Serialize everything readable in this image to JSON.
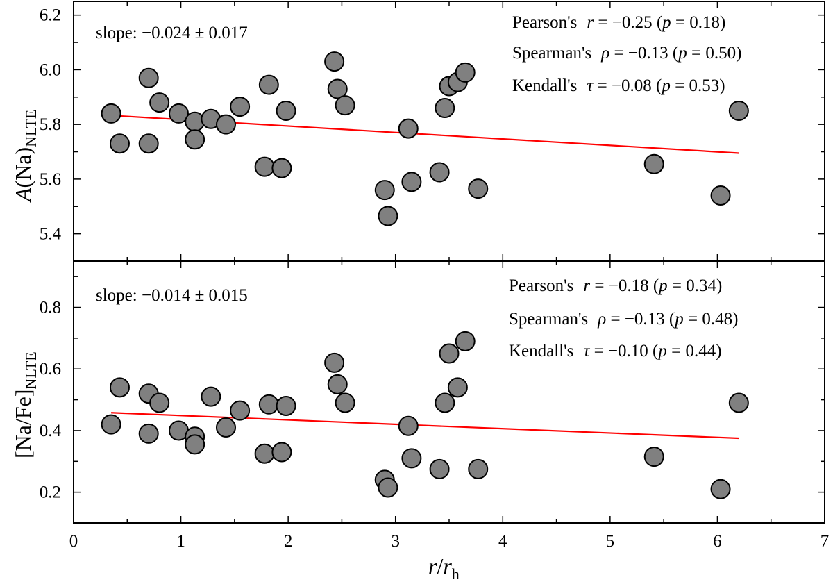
{
  "chart_data": [
    {
      "type": "scatter",
      "panel": "top",
      "ylabel_main": "A",
      "ylabel_paren": "(Na)",
      "ylabel_sub": "NLTE",
      "xlim": [
        0,
        7
      ],
      "ylim": [
        5.3,
        6.25
      ],
      "yticks": [
        5.4,
        5.6,
        5.8,
        6.0,
        6.2
      ],
      "ytick_labels": [
        "5.4",
        "5.6",
        "5.8",
        "6.0",
        "6.2"
      ],
      "x": [
        0.35,
        0.43,
        0.7,
        0.7,
        0.8,
        0.98,
        1.13,
        1.13,
        1.28,
        1.42,
        1.55,
        1.78,
        1.82,
        1.94,
        1.98,
        2.43,
        2.46,
        2.53,
        2.9,
        2.93,
        3.12,
        3.15,
        3.41,
        3.46,
        3.5,
        3.58,
        3.65,
        3.77,
        5.41,
        6.03,
        6.2
      ],
      "y": [
        5.84,
        5.73,
        5.97,
        5.73,
        5.88,
        5.84,
        5.81,
        5.745,
        5.82,
        5.8,
        5.865,
        5.645,
        5.945,
        5.64,
        5.85,
        6.03,
        5.93,
        5.87,
        5.56,
        5.465,
        5.785,
        5.59,
        5.625,
        5.86,
        5.94,
        5.955,
        5.99,
        5.565,
        5.655,
        5.54,
        5.85
      ],
      "fit": {
        "x": [
          0.35,
          6.2
        ],
        "y": [
          5.833,
          5.695
        ]
      },
      "slope_label": "slope: −0.024 ± 0.017",
      "stats": [
        {
          "name": "Pearson's",
          "symbol": "r",
          "value": " = −0.25 (",
          "p_symbol": "p",
          "p_value": " = 0.18)"
        },
        {
          "name": "Spearman's",
          "symbol": "ρ",
          "value": " = −0.13 (",
          "p_symbol": "p",
          "p_value": " = 0.50)"
        },
        {
          "name": "Kendall's",
          "symbol": "τ",
          "value": " = −0.08 (",
          "p_symbol": "p",
          "p_value": " = 0.53)"
        }
      ]
    },
    {
      "type": "scatter",
      "panel": "bottom",
      "ylabel_main": "[Na/Fe]",
      "ylabel_sub": "NLTE",
      "xlabel_main": "r",
      "xlabel_slash": "/",
      "xlabel_r2": "r",
      "xlabel_sub": "h",
      "xlim": [
        0,
        7
      ],
      "ylim": [
        0.1,
        0.95
      ],
      "yticks": [
        0.2,
        0.4,
        0.6,
        0.8
      ],
      "ytick_labels": [
        "0.2",
        "0.4",
        "0.6",
        "0.8"
      ],
      "xticks": [
        0,
        1,
        2,
        3,
        4,
        5,
        6,
        7
      ],
      "xtick_labels": [
        "0",
        "1",
        "2",
        "3",
        "4",
        "5",
        "6",
        "7"
      ],
      "x": [
        0.35,
        0.43,
        0.7,
        0.7,
        0.8,
        0.98,
        1.13,
        1.13,
        1.28,
        1.42,
        1.55,
        1.78,
        1.82,
        1.94,
        1.98,
        2.43,
        2.46,
        2.53,
        2.9,
        2.93,
        3.12,
        3.15,
        3.41,
        3.46,
        3.5,
        3.58,
        3.65,
        3.77,
        5.41,
        6.03,
        6.2
      ],
      "y": [
        0.42,
        0.54,
        0.52,
        0.39,
        0.49,
        0.4,
        0.38,
        0.355,
        0.51,
        0.41,
        0.465,
        0.325,
        0.485,
        0.33,
        0.48,
        0.62,
        0.55,
        0.49,
        0.24,
        0.215,
        0.415,
        0.31,
        0.275,
        0.49,
        0.65,
        0.54,
        0.69,
        0.275,
        0.315,
        0.21,
        0.49
      ],
      "fit": {
        "x": [
          0.35,
          6.2
        ],
        "y": [
          0.458,
          0.375
        ]
      },
      "slope_label": "slope: −0.014 ± 0.015",
      "stats": [
        {
          "name": "Pearson's",
          "symbol": "r",
          "value": " = −0.18 (",
          "p_symbol": "p",
          "p_value": " = 0.34)"
        },
        {
          "name": "Spearman's",
          "symbol": "ρ",
          "value": " = −0.13 (",
          "p_symbol": "p",
          "p_value": " = 0.48)"
        },
        {
          "name": "Kendall's",
          "symbol": "τ",
          "value": " = −0.10 (",
          "p_symbol": "p",
          "p_value": " = 0.44)"
        }
      ]
    }
  ],
  "colors": {
    "points": "#808080",
    "fit": "#ff0000",
    "axes": "#000000"
  }
}
